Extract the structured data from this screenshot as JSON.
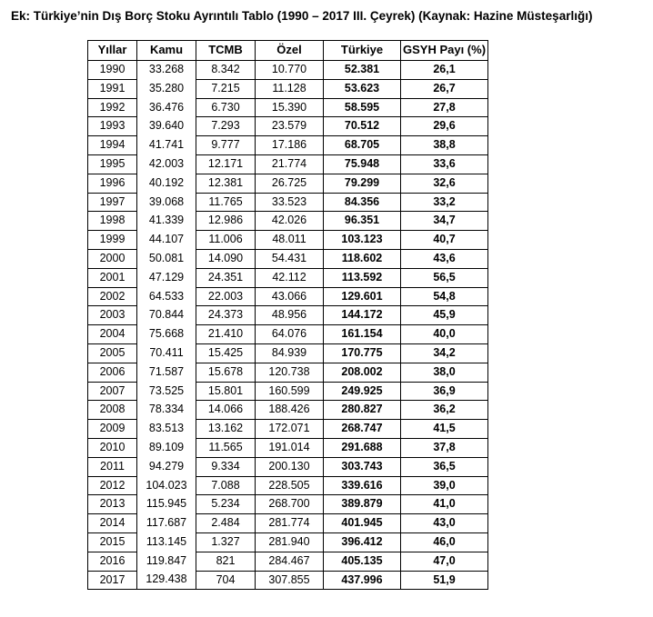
{
  "title": "Ek: Türkiye’nin Dış Borç Stoku Ayrıntılı Tablo (1990 – 2017 III. Çeyrek) (Kaynak: Hazine Müsteşarlığı)",
  "table": {
    "columns": [
      "Yıllar",
      "Kamu",
      "TCMB",
      "Özel",
      "Türkiye",
      "GSYH Payı (%)"
    ],
    "rows": [
      [
        "1990",
        "33.268",
        "8.342",
        "10.770",
        "52.381",
        "26,1"
      ],
      [
        "1991",
        "35.280",
        "7.215",
        "11.128",
        "53.623",
        "26,7"
      ],
      [
        "1992",
        "36.476",
        "6.730",
        "15.390",
        "58.595",
        "27,8"
      ],
      [
        "1993",
        "39.640",
        "7.293",
        "23.579",
        "70.512",
        "29,6"
      ],
      [
        "1994",
        "41.741",
        "9.777",
        "17.186",
        "68.705",
        "38,8"
      ],
      [
        "1995",
        "42.003",
        "12.171",
        "21.774",
        "75.948",
        "33,6"
      ],
      [
        "1996",
        "40.192",
        "12.381",
        "26.725",
        "79.299",
        "32,6"
      ],
      [
        "1997",
        "39.068",
        "11.765",
        "33.523",
        "84.356",
        "33,2"
      ],
      [
        "1998",
        "41.339",
        "12.986",
        "42.026",
        "96.351",
        "34,7"
      ],
      [
        "1999",
        "44.107",
        "11.006",
        "48.011",
        "103.123",
        "40,7"
      ],
      [
        "2000",
        "50.081",
        "14.090",
        "54.431",
        "118.602",
        "43,6"
      ],
      [
        "2001",
        "47.129",
        "24.351",
        "42.112",
        "113.592",
        "56,5"
      ],
      [
        "2002",
        "64.533",
        "22.003",
        "43.066",
        "129.601",
        "54,8"
      ],
      [
        "2003",
        "70.844",
        "24.373",
        "48.956",
        "144.172",
        "45,9"
      ],
      [
        "2004",
        "75.668",
        "21.410",
        "64.076",
        "161.154",
        "40,0"
      ],
      [
        "2005",
        "70.411",
        "15.425",
        "84.939",
        "170.775",
        "34,2"
      ],
      [
        "2006",
        "71.587",
        "15.678",
        "120.738",
        "208.002",
        "38,0"
      ],
      [
        "2007",
        "73.525",
        "15.801",
        "160.599",
        "249.925",
        "36,9"
      ],
      [
        "2008",
        "78.334",
        "14.066",
        "188.426",
        "280.827",
        "36,2"
      ],
      [
        "2009",
        "83.513",
        "13.162",
        "172.071",
        "268.747",
        "41,5"
      ],
      [
        "2010",
        "89.109",
        "11.565",
        "191.014",
        "291.688",
        "37,8"
      ],
      [
        "2011",
        "94.279",
        "9.334",
        "200.130",
        "303.743",
        "36,5"
      ],
      [
        "2012",
        "104.023",
        "7.088",
        "228.505",
        "339.616",
        "39,0"
      ],
      [
        "2013",
        "115.945",
        "5.234",
        "268.700",
        "389.879",
        "41,0"
      ],
      [
        "2014",
        "117.687",
        "2.484",
        "281.774",
        "401.945",
        "43,0"
      ],
      [
        "2015",
        "113.145",
        "1.327",
        "281.940",
        "396.412",
        "46,0"
      ],
      [
        "2016",
        "119.847",
        "821",
        "284.467",
        "405.135",
        "47,0"
      ],
      [
        "2017",
        "129.438",
        "704",
        "307.855",
        "437.996",
        "51,9"
      ]
    ],
    "cell_names": [
      "year-cell",
      "kamu-cell",
      "tcmb-cell",
      "ozel-cell",
      "turkiye-cell",
      "gsyh-share-cell"
    ]
  }
}
